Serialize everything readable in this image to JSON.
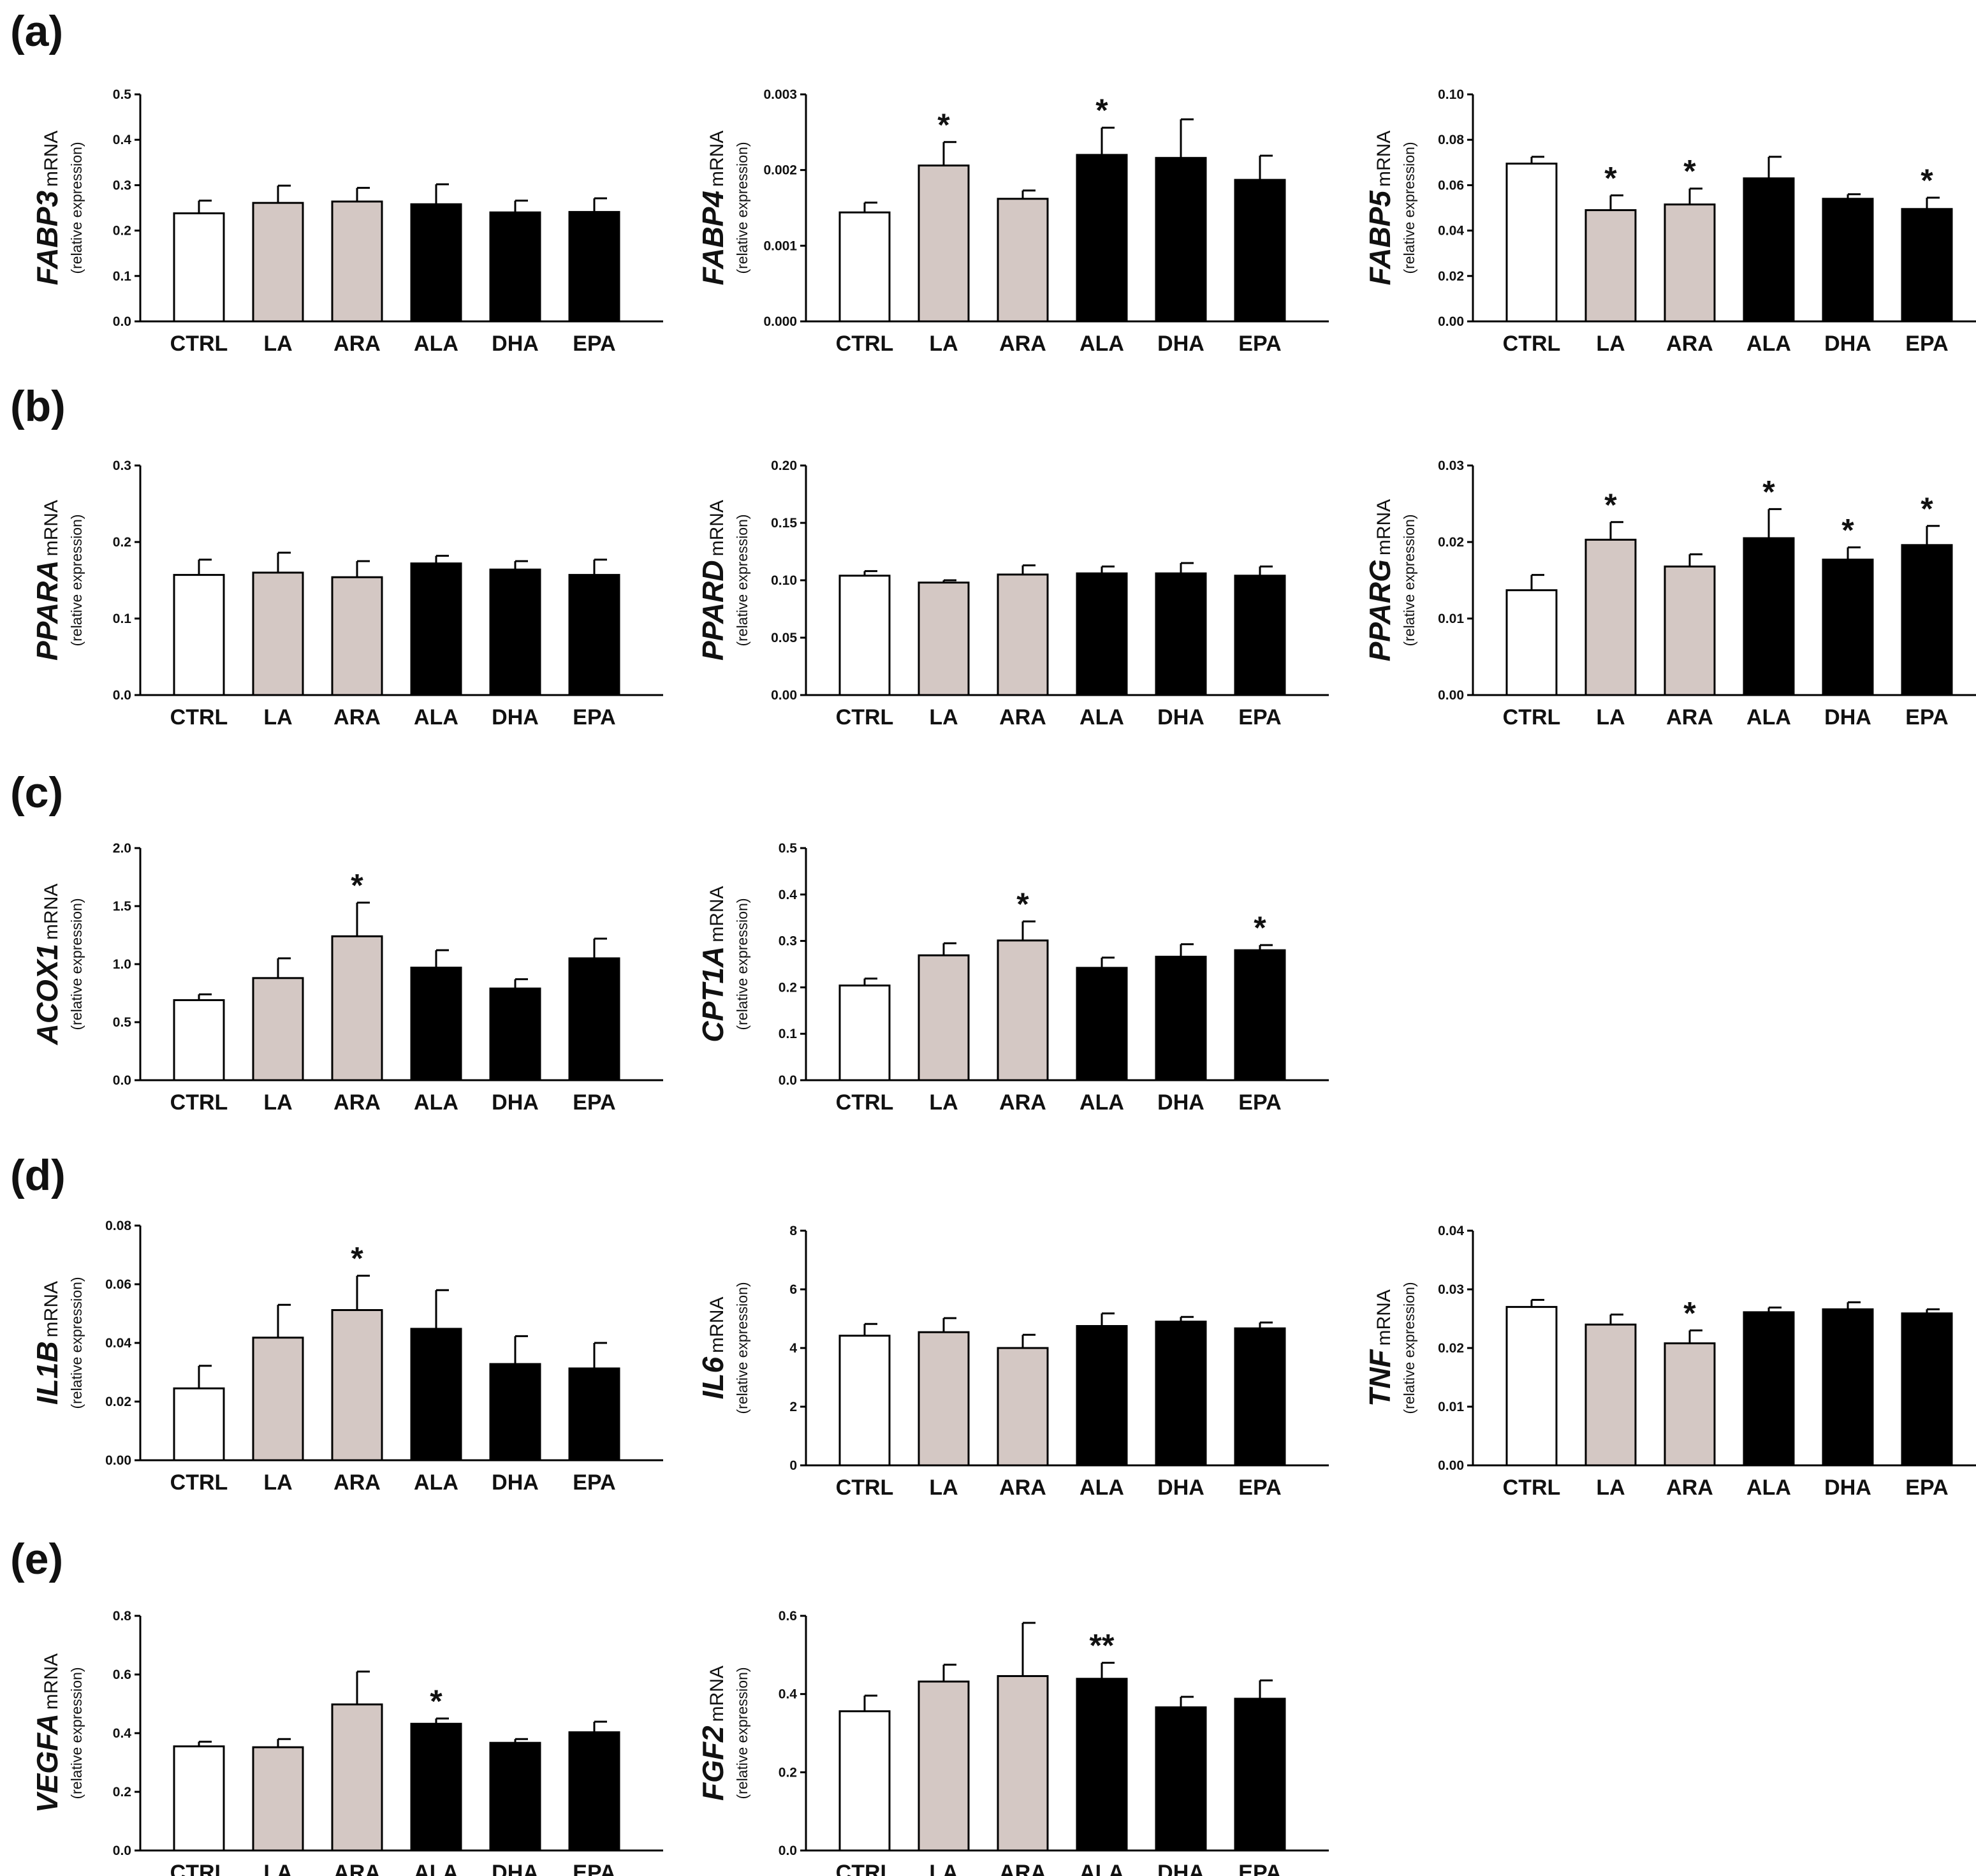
{
  "colors": {
    "CTRL": "#ffffff",
    "LA": "#d4c8c4",
    "ARA": "#d4c8c4",
    "ALA": "#000000",
    "DHA": "#000000",
    "EPA": "#000000",
    "outline": "#000000"
  },
  "panel_labels": [
    "(a)",
    "(b)",
    "(c)",
    "(d)",
    "(e)"
  ],
  "chart_data": [
    {
      "id": "fabp3",
      "type": "bar",
      "gene": "FABP3",
      "unit": "mRNA",
      "ylabel2": "(relative expression)",
      "categories": [
        "CTRL",
        "LA",
        "ARA",
        "ALA",
        "DHA",
        "EPA"
      ],
      "values": [
        0.238,
        0.261,
        0.264,
        0.258,
        0.24,
        0.241
      ],
      "errors": [
        0.028,
        0.038,
        0.03,
        0.044,
        0.026,
        0.03
      ],
      "sig": [
        "",
        "",
        "",
        "",
        "",
        ""
      ],
      "ylim": [
        0,
        0.5
      ],
      "yticks": [
        "0.0",
        "0.1",
        "0.2",
        "0.3",
        "0.4",
        "0.5"
      ]
    },
    {
      "id": "fabp4",
      "type": "bar",
      "gene": "FABP4",
      "unit": "mRNA",
      "ylabel2": "(relative expression)",
      "categories": [
        "CTRL",
        "LA",
        "ARA",
        "ALA",
        "DHA",
        "EPA"
      ],
      "values": [
        0.00144,
        0.00206,
        0.00162,
        0.0022,
        0.00216,
        0.00187
      ],
      "errors": [
        0.00013,
        0.00031,
        0.00011,
        0.00036,
        0.00051,
        0.00032
      ],
      "sig": [
        "",
        "*",
        "",
        "*",
        "",
        ""
      ],
      "ylim": [
        0,
        0.003
      ],
      "yticks": [
        "0.000",
        "0.001",
        "0.002",
        "0.003"
      ]
    },
    {
      "id": "fabp5",
      "type": "bar",
      "gene": "FABP5",
      "unit": "mRNA",
      "ylabel2": "(relative expression)",
      "categories": [
        "CTRL",
        "LA",
        "ARA",
        "ALA",
        "DHA",
        "EPA"
      ],
      "values": [
        0.0695,
        0.049,
        0.0515,
        0.063,
        0.054,
        0.0495
      ],
      "errors": [
        0.003,
        0.0065,
        0.007,
        0.0095,
        0.002,
        0.005
      ],
      "sig": [
        "",
        "*",
        "*",
        "",
        "",
        "*"
      ],
      "ylim": [
        0,
        0.1
      ],
      "yticks": [
        "0.00",
        "0.02",
        "0.04",
        "0.06",
        "0.08",
        "0.10"
      ]
    },
    {
      "id": "ppara",
      "type": "bar",
      "gene": "PPARA",
      "unit": "mRNA",
      "ylabel2": "(relative expression)",
      "categories": [
        "CTRL",
        "LA",
        "ARA",
        "ALA",
        "DHA",
        "EPA"
      ],
      "values": [
        0.157,
        0.16,
        0.154,
        0.172,
        0.164,
        0.157
      ],
      "errors": [
        0.02,
        0.026,
        0.021,
        0.01,
        0.011,
        0.02
      ],
      "sig": [
        "",
        "",
        "",
        "",
        "",
        ""
      ],
      "ylim": [
        0,
        0.3
      ],
      "yticks": [
        "0.0",
        "0.1",
        "0.2",
        "0.3"
      ]
    },
    {
      "id": "ppard",
      "type": "bar",
      "gene": "PPARD",
      "unit": "mRNA",
      "ylabel2": "(relative expression)",
      "categories": [
        "CTRL",
        "LA",
        "ARA",
        "ALA",
        "DHA",
        "EPA"
      ],
      "values": [
        0.104,
        0.098,
        0.105,
        0.106,
        0.106,
        0.104
      ],
      "errors": [
        0.004,
        0.002,
        0.008,
        0.006,
        0.009,
        0.008
      ],
      "sig": [
        "",
        "",
        "",
        "",
        "",
        ""
      ],
      "ylim": [
        0,
        0.2
      ],
      "yticks": [
        "0.00",
        "0.05",
        "0.10",
        "0.15",
        "0.20"
      ]
    },
    {
      "id": "pparg",
      "type": "bar",
      "gene": "PPARG",
      "unit": "mRNA",
      "ylabel2": "(relative expression)",
      "categories": [
        "CTRL",
        "LA",
        "ARA",
        "ALA",
        "DHA",
        "EPA"
      ],
      "values": [
        0.0137,
        0.0203,
        0.0168,
        0.0205,
        0.0177,
        0.0196
      ],
      "errors": [
        0.002,
        0.0023,
        0.0016,
        0.0038,
        0.0016,
        0.0025
      ],
      "sig": [
        "",
        "*",
        "",
        "*",
        "*",
        "*"
      ],
      "ylim": [
        0,
        0.03
      ],
      "yticks": [
        "0.00",
        "0.01",
        "0.02",
        "0.03"
      ]
    },
    {
      "id": "acox1",
      "type": "bar",
      "gene": "ACOX1",
      "unit": "mRNA",
      "ylabel2": "(relative expression)",
      "categories": [
        "CTRL",
        "LA",
        "ARA",
        "ALA",
        "DHA",
        "EPA"
      ],
      "values": [
        0.69,
        0.88,
        1.24,
        0.97,
        0.79,
        1.05
      ],
      "errors": [
        0.05,
        0.17,
        0.29,
        0.15,
        0.08,
        0.17
      ],
      "sig": [
        "",
        "",
        "*",
        "",
        "",
        ""
      ],
      "ylim": [
        0,
        2.0
      ],
      "yticks": [
        "0.0",
        "0.5",
        "1.0",
        "1.5",
        "2.0"
      ]
    },
    {
      "id": "cpt1a",
      "type": "bar",
      "gene": "CPT1A",
      "unit": "mRNA",
      "ylabel2": "(relative expression)",
      "categories": [
        "CTRL",
        "LA",
        "ARA",
        "ALA",
        "DHA",
        "EPA"
      ],
      "values": [
        0.204,
        0.269,
        0.301,
        0.242,
        0.266,
        0.28
      ],
      "errors": [
        0.015,
        0.026,
        0.041,
        0.022,
        0.027,
        0.011
      ],
      "sig": [
        "",
        "",
        "*",
        "",
        "",
        "*"
      ],
      "ylim": [
        0,
        0.5
      ],
      "yticks": [
        "0.0",
        "0.1",
        "0.2",
        "0.3",
        "0.4",
        "0.5"
      ]
    },
    {
      "id": "il1b",
      "type": "bar",
      "gene": "IL1B",
      "unit": "mRNA",
      "ylabel2": "(relative expression)",
      "categories": [
        "CTRL",
        "LA",
        "ARA",
        "ALA",
        "DHA",
        "EPA"
      ],
      "values": [
        0.0245,
        0.0418,
        0.0512,
        0.0448,
        0.0328,
        0.0313
      ],
      "errors": [
        0.0077,
        0.0112,
        0.0117,
        0.0132,
        0.0095,
        0.0087
      ],
      "sig": [
        "",
        "",
        "*",
        "",
        "",
        ""
      ],
      "ylim": [
        0,
        0.08
      ],
      "yticks": [
        "0.00",
        "0.02",
        "0.04",
        "0.06",
        "0.08"
      ]
    },
    {
      "id": "il6",
      "type": "bar",
      "gene": "IL6",
      "unit": "mRNA",
      "ylabel2": "(relative expression)",
      "categories": [
        "CTRL",
        "LA",
        "ARA",
        "ALA",
        "DHA",
        "EPA"
      ],
      "values": [
        4.42,
        4.54,
        4.0,
        4.75,
        4.9,
        4.67
      ],
      "errors": [
        0.4,
        0.48,
        0.45,
        0.43,
        0.16,
        0.2
      ],
      "sig": [
        "",
        "",
        "",
        "",
        "",
        ""
      ],
      "ylim": [
        0,
        8
      ],
      "yticks": [
        "0",
        "2",
        "4",
        "6",
        "8"
      ]
    },
    {
      "id": "tnf",
      "type": "bar",
      "gene": "TNF",
      "unit": "mRNA",
      "ylabel2": "(relative expression)",
      "categories": [
        "CTRL",
        "LA",
        "ARA",
        "ALA",
        "DHA",
        "EPA"
      ],
      "values": [
        0.027,
        0.024,
        0.0208,
        0.0261,
        0.0266,
        0.0259
      ],
      "errors": [
        0.0012,
        0.0017,
        0.0022,
        0.0008,
        0.0012,
        0.0007
      ],
      "sig": [
        "",
        "",
        "*",
        "",
        "",
        ""
      ],
      "ylim": [
        0,
        0.04
      ],
      "yticks": [
        "0.00",
        "0.01",
        "0.02",
        "0.03",
        "0.04"
      ]
    },
    {
      "id": "vegfa",
      "type": "bar",
      "gene": "VEGFA",
      "unit": "mRNA",
      "ylabel2": "(relative expression)",
      "categories": [
        "CTRL",
        "LA",
        "ARA",
        "ALA",
        "DHA",
        "EPA"
      ],
      "values": [
        0.355,
        0.352,
        0.498,
        0.432,
        0.367,
        0.403
      ],
      "errors": [
        0.016,
        0.028,
        0.112,
        0.018,
        0.013,
        0.036
      ],
      "sig": [
        "",
        "",
        "",
        "*",
        "",
        ""
      ],
      "ylim": [
        0,
        0.8
      ],
      "yticks": [
        "0.0",
        "0.2",
        "0.4",
        "0.6",
        "0.8"
      ]
    },
    {
      "id": "fgf2",
      "type": "bar",
      "gene": "FGF2",
      "unit": "mRNA",
      "ylabel2": "(relative expression)",
      "categories": [
        "CTRL",
        "LA",
        "ARA",
        "ALA",
        "DHA",
        "EPA"
      ],
      "values": [
        0.356,
        0.432,
        0.446,
        0.439,
        0.366,
        0.388
      ],
      "errors": [
        0.04,
        0.043,
        0.136,
        0.041,
        0.027,
        0.047
      ],
      "sig": [
        "",
        "",
        "",
        "**",
        "",
        ""
      ],
      "ylim": [
        0,
        0.6
      ],
      "yticks": [
        "0.0",
        "0.2",
        "0.4",
        "0.6"
      ]
    }
  ]
}
